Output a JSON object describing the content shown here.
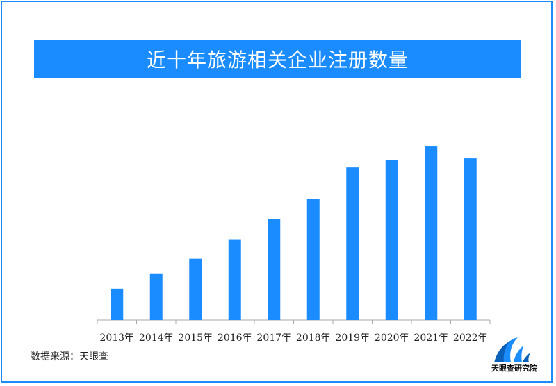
{
  "title": "近十年旅游相关企业注册数量",
  "source": "数据来源：天眼查",
  "logo_text": "天眼查研究院",
  "colors": {
    "accent": "#1a8cff",
    "bar": "#1a8cff",
    "axis": "#aaaaaa"
  },
  "chart_data": {
    "type": "bar",
    "title": "近十年旅游相关企业注册数量",
    "categories": [
      "2013年",
      "2014年",
      "2015年",
      "2016年",
      "2017年",
      "2018年",
      "2019年",
      "2020年",
      "2021年",
      "2022年"
    ],
    "values": [
      45,
      67,
      88,
      116,
      145,
      174,
      219,
      230,
      249,
      232
    ],
    "ylim": [
      0,
      260
    ],
    "grid": false,
    "legend": "none"
  }
}
